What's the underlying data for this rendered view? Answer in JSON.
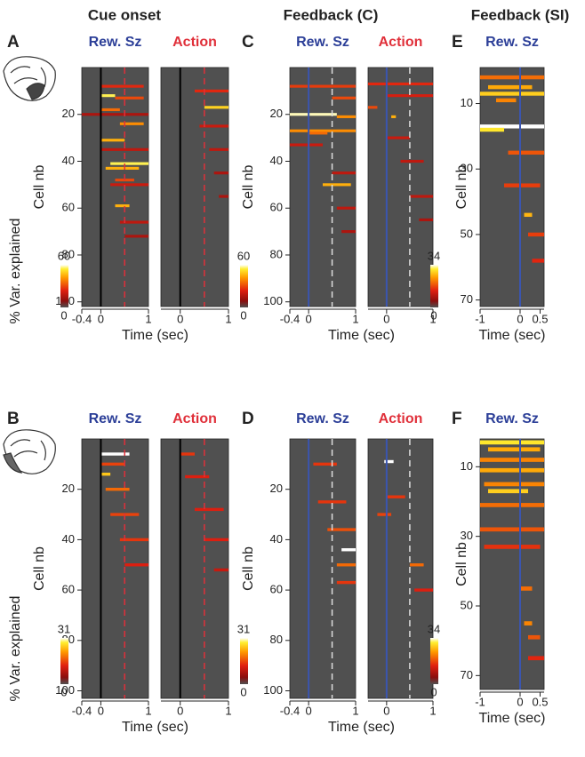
{
  "figure": {
    "column_titles": [
      "Cue onset",
      "Feedback (C)",
      "Feedback (SI)"
    ],
    "colorbar_label": "% Var. explained"
  },
  "chart_data": [
    {
      "type": "heatmap",
      "letter": "A",
      "xlabel": "Time (sec)",
      "ylabel": "Cell nb",
      "xlim": [
        -0.4,
        1
      ],
      "ylim": [
        0,
        102
      ],
      "yticks": [
        20,
        40,
        60,
        80,
        100
      ],
      "clim": [
        0,
        60
      ],
      "cticks": [
        0,
        60
      ],
      "onset_line": {
        "x": 0,
        "color": "#000000"
      },
      "dashed_line": {
        "x": 0.5,
        "color": "#e0303a"
      },
      "subplots": [
        {
          "title": "Rew. Sz",
          "title_color": "#2c3f98",
          "xticks": [
            -0.4,
            0,
            1
          ],
          "cells": [
            [
              8,
              0,
              0.9,
              25
            ],
            [
              12,
              0,
              0.3,
              55
            ],
            [
              13,
              0.3,
              0.9,
              30
            ],
            [
              18,
              0,
              0.4,
              35
            ],
            [
              24,
              0.4,
              0.9,
              40
            ],
            [
              31,
              0,
              0.5,
              45
            ],
            [
              41,
              0.2,
              1,
              55
            ],
            [
              43,
              0.1,
              0.8,
              45
            ],
            [
              48,
              0.3,
              0.7,
              30
            ],
            [
              59,
              0.3,
              0.6,
              45
            ],
            [
              20,
              -0.4,
              1,
              15
            ],
            [
              35,
              0,
              1,
              18
            ],
            [
              50,
              0.2,
              1,
              20
            ],
            [
              66,
              0.4,
              1,
              18
            ],
            [
              72,
              0.5,
              1,
              15
            ]
          ]
        },
        {
          "title": "Action",
          "title_color": "#e0303a",
          "xticks": [
            0,
            1
          ],
          "cells": [
            [
              10,
              0.3,
              1,
              25
            ],
            [
              17,
              0.5,
              1,
              50
            ],
            [
              25,
              0.4,
              1,
              20
            ],
            [
              35,
              0.6,
              1,
              18
            ],
            [
              45,
              0.7,
              1,
              15
            ],
            [
              55,
              0.8,
              1,
              15
            ]
          ]
        }
      ]
    },
    {
      "type": "heatmap",
      "letter": "C",
      "xlabel": "Time (sec)",
      "ylabel": "Cell nb",
      "xlim": [
        -0.4,
        1
      ],
      "ylim": [
        0,
        102
      ],
      "yticks": [
        20,
        40,
        60,
        80,
        100
      ],
      "clim": [
        0,
        60
      ],
      "cticks": [
        0,
        60
      ],
      "onset_line": {
        "x": 0,
        "color": "#3a55b0"
      },
      "dashed_line": {
        "x": 0.5,
        "color": "#dddddd"
      },
      "subplots": [
        {
          "title": "Rew. Sz",
          "title_color": "#2c3f98",
          "xticks": [
            -0.4,
            0,
            1
          ],
          "cells": [
            [
              8,
              -0.4,
              1,
              28
            ],
            [
              13,
              0.5,
              1,
              30
            ],
            [
              20,
              -0.4,
              0.6,
              58
            ],
            [
              21,
              0.6,
              1,
              40
            ],
            [
              27,
              -0.4,
              1,
              40
            ],
            [
              28,
              0,
              0.4,
              35
            ],
            [
              33,
              -0.4,
              0.3,
              20
            ],
            [
              50,
              0.3,
              0.9,
              45
            ],
            [
              45,
              0.5,
              1,
              18
            ],
            [
              60,
              0.6,
              1,
              18
            ],
            [
              70,
              0.7,
              1,
              15
            ]
          ]
        },
        {
          "title": "Action",
          "title_color": "#e0303a",
          "xticks": [
            0,
            1
          ],
          "cells": [
            [
              7,
              -0.4,
              1,
              25
            ],
            [
              12,
              0,
              1,
              22
            ],
            [
              17,
              -0.4,
              -0.2,
              30
            ],
            [
              21,
              0.1,
              0.2,
              45
            ],
            [
              30,
              0,
              0.5,
              20
            ],
            [
              40,
              0.3,
              0.8,
              18
            ],
            [
              55,
              0.5,
              1,
              18
            ],
            [
              65,
              0.7,
              1,
              15
            ]
          ]
        }
      ]
    },
    {
      "type": "heatmap",
      "letter": "E",
      "xlabel": "Time (sec)",
      "ylabel": "Cell nb",
      "xlim": [
        -1,
        0.6
      ],
      "ylim": [
        -1,
        72
      ],
      "yticks": [
        10,
        30,
        50,
        70
      ],
      "clim": [
        0,
        34
      ],
      "cticks": [
        0,
        34
      ],
      "onset_line": {
        "x": 0,
        "color": "#3a55b0"
      },
      "subplots": [
        {
          "title": "Rew. Sz",
          "title_color": "#2c3f98",
          "xticks": [
            -1,
            0,
            0.5
          ],
          "cells": [
            [
              2,
              -1,
              0.6,
              20
            ],
            [
              5,
              -0.8,
              0.3,
              25
            ],
            [
              7,
              -1,
              0.6,
              28
            ],
            [
              9,
              -0.6,
              -0.1,
              22
            ],
            [
              17,
              -1,
              0.6,
              34
            ],
            [
              18,
              -1,
              -0.4,
              30
            ],
            [
              25,
              -0.3,
              0.6,
              18
            ],
            [
              35,
              -0.4,
              0.5,
              16
            ],
            [
              44,
              0.1,
              0.3,
              26
            ],
            [
              50,
              0.2,
              0.6,
              16
            ],
            [
              58,
              0.3,
              0.6,
              14
            ]
          ]
        }
      ]
    },
    {
      "type": "heatmap",
      "letter": "B",
      "xlabel": "Time (sec)",
      "ylabel": "Cell nb",
      "xlim": [
        -0.4,
        1
      ],
      "ylim": [
        0,
        103
      ],
      "yticks": [
        20,
        40,
        60,
        80,
        100
      ],
      "clim": [
        0,
        31
      ],
      "cticks": [
        0,
        31
      ],
      "onset_line": {
        "x": 0,
        "color": "#000000"
      },
      "dashed_line": {
        "x": 0.5,
        "color": "#e0303a"
      },
      "subplots": [
        {
          "title": "Rew. Sz",
          "title_color": "#2c3f98",
          "xticks": [
            -0.4,
            0,
            1
          ],
          "cells": [
            [
              6,
              0,
              0.6,
              31
            ],
            [
              14,
              0,
              0.2,
              25
            ],
            [
              10,
              0,
              0.5,
              15
            ],
            [
              20,
              0.1,
              0.6,
              18
            ],
            [
              30,
              0.2,
              0.8,
              15
            ],
            [
              40,
              0.4,
              1,
              14
            ],
            [
              50,
              0.5,
              1,
              12
            ]
          ]
        },
        {
          "title": "Action",
          "title_color": "#e0303a",
          "xticks": [
            0,
            1
          ],
          "cells": [
            [
              6,
              0,
              0.3,
              14
            ],
            [
              15,
              0.1,
              0.6,
              12
            ],
            [
              28,
              0.3,
              0.9,
              12
            ],
            [
              40,
              0.5,
              1,
              12
            ],
            [
              52,
              0.7,
              1,
              10
            ]
          ]
        }
      ]
    },
    {
      "type": "heatmap",
      "letter": "D",
      "xlabel": "Time (sec)",
      "ylabel": "Cell nb",
      "xlim": [
        -0.4,
        1
      ],
      "ylim": [
        0,
        103
      ],
      "yticks": [
        20,
        40,
        60,
        80,
        100
      ],
      "clim": [
        0,
        31
      ],
      "cticks": [
        0,
        31
      ],
      "onset_line": {
        "x": 0,
        "color": "#3a55b0"
      },
      "dashed_line": {
        "x": 0.5,
        "color": "#dddddd"
      },
      "subplots": [
        {
          "title": "Rew. Sz",
          "title_color": "#2c3f98",
          "xticks": [
            -0.4,
            0,
            1
          ],
          "cells": [
            [
              10,
              0.1,
              0.6,
              14
            ],
            [
              25,
              0.2,
              0.8,
              14
            ],
            [
              36,
              0.4,
              1,
              16
            ],
            [
              44,
              0.7,
              1,
              31
            ],
            [
              50,
              0.6,
              1,
              18
            ],
            [
              57,
              0.6,
              1,
              14
            ]
          ]
        },
        {
          "title": "Action",
          "title_color": "#e0303a",
          "xticks": [
            0,
            1
          ],
          "cells": [
            [
              9,
              -0.05,
              0.15,
              31
            ],
            [
              23,
              0,
              0.4,
              14
            ],
            [
              30,
              -0.2,
              0.1,
              15
            ],
            [
              50,
              0.5,
              0.8,
              18
            ],
            [
              60,
              0.6,
              1,
              12
            ]
          ]
        }
      ]
    },
    {
      "type": "heatmap",
      "letter": "F",
      "xlabel": "Time (sec)",
      "ylabel": "Cell nb",
      "xlim": [
        -1,
        0.6
      ],
      "ylim": [
        2,
        74
      ],
      "yticks": [
        10,
        30,
        50,
        70
      ],
      "clim": [
        0,
        34
      ],
      "cticks": [
        0,
        34
      ],
      "onset_line": {
        "x": 0,
        "color": "#3a55b0"
      },
      "subplots": [
        {
          "title": "Rew. Sz",
          "title_color": "#2c3f98",
          "xticks": [
            -1,
            0,
            0.5
          ],
          "cells": [
            [
              3,
              -1,
              0.6,
              30
            ],
            [
              5,
              -0.8,
              0.5,
              25
            ],
            [
              8,
              -1,
              0.6,
              22
            ],
            [
              11,
              -1,
              0.6,
              25
            ],
            [
              15,
              -0.9,
              0.6,
              22
            ],
            [
              17,
              -0.8,
              0.2,
              28
            ],
            [
              21,
              -1,
              0.6,
              20
            ],
            [
              28,
              -1,
              0.6,
              18
            ],
            [
              33,
              -0.9,
              0.5,
              15
            ],
            [
              45,
              0,
              0.3,
              20
            ],
            [
              55,
              0.1,
              0.3,
              22
            ],
            [
              59,
              0.2,
              0.5,
              18
            ],
            [
              65,
              0.2,
              0.6,
              14
            ]
          ]
        }
      ]
    }
  ]
}
